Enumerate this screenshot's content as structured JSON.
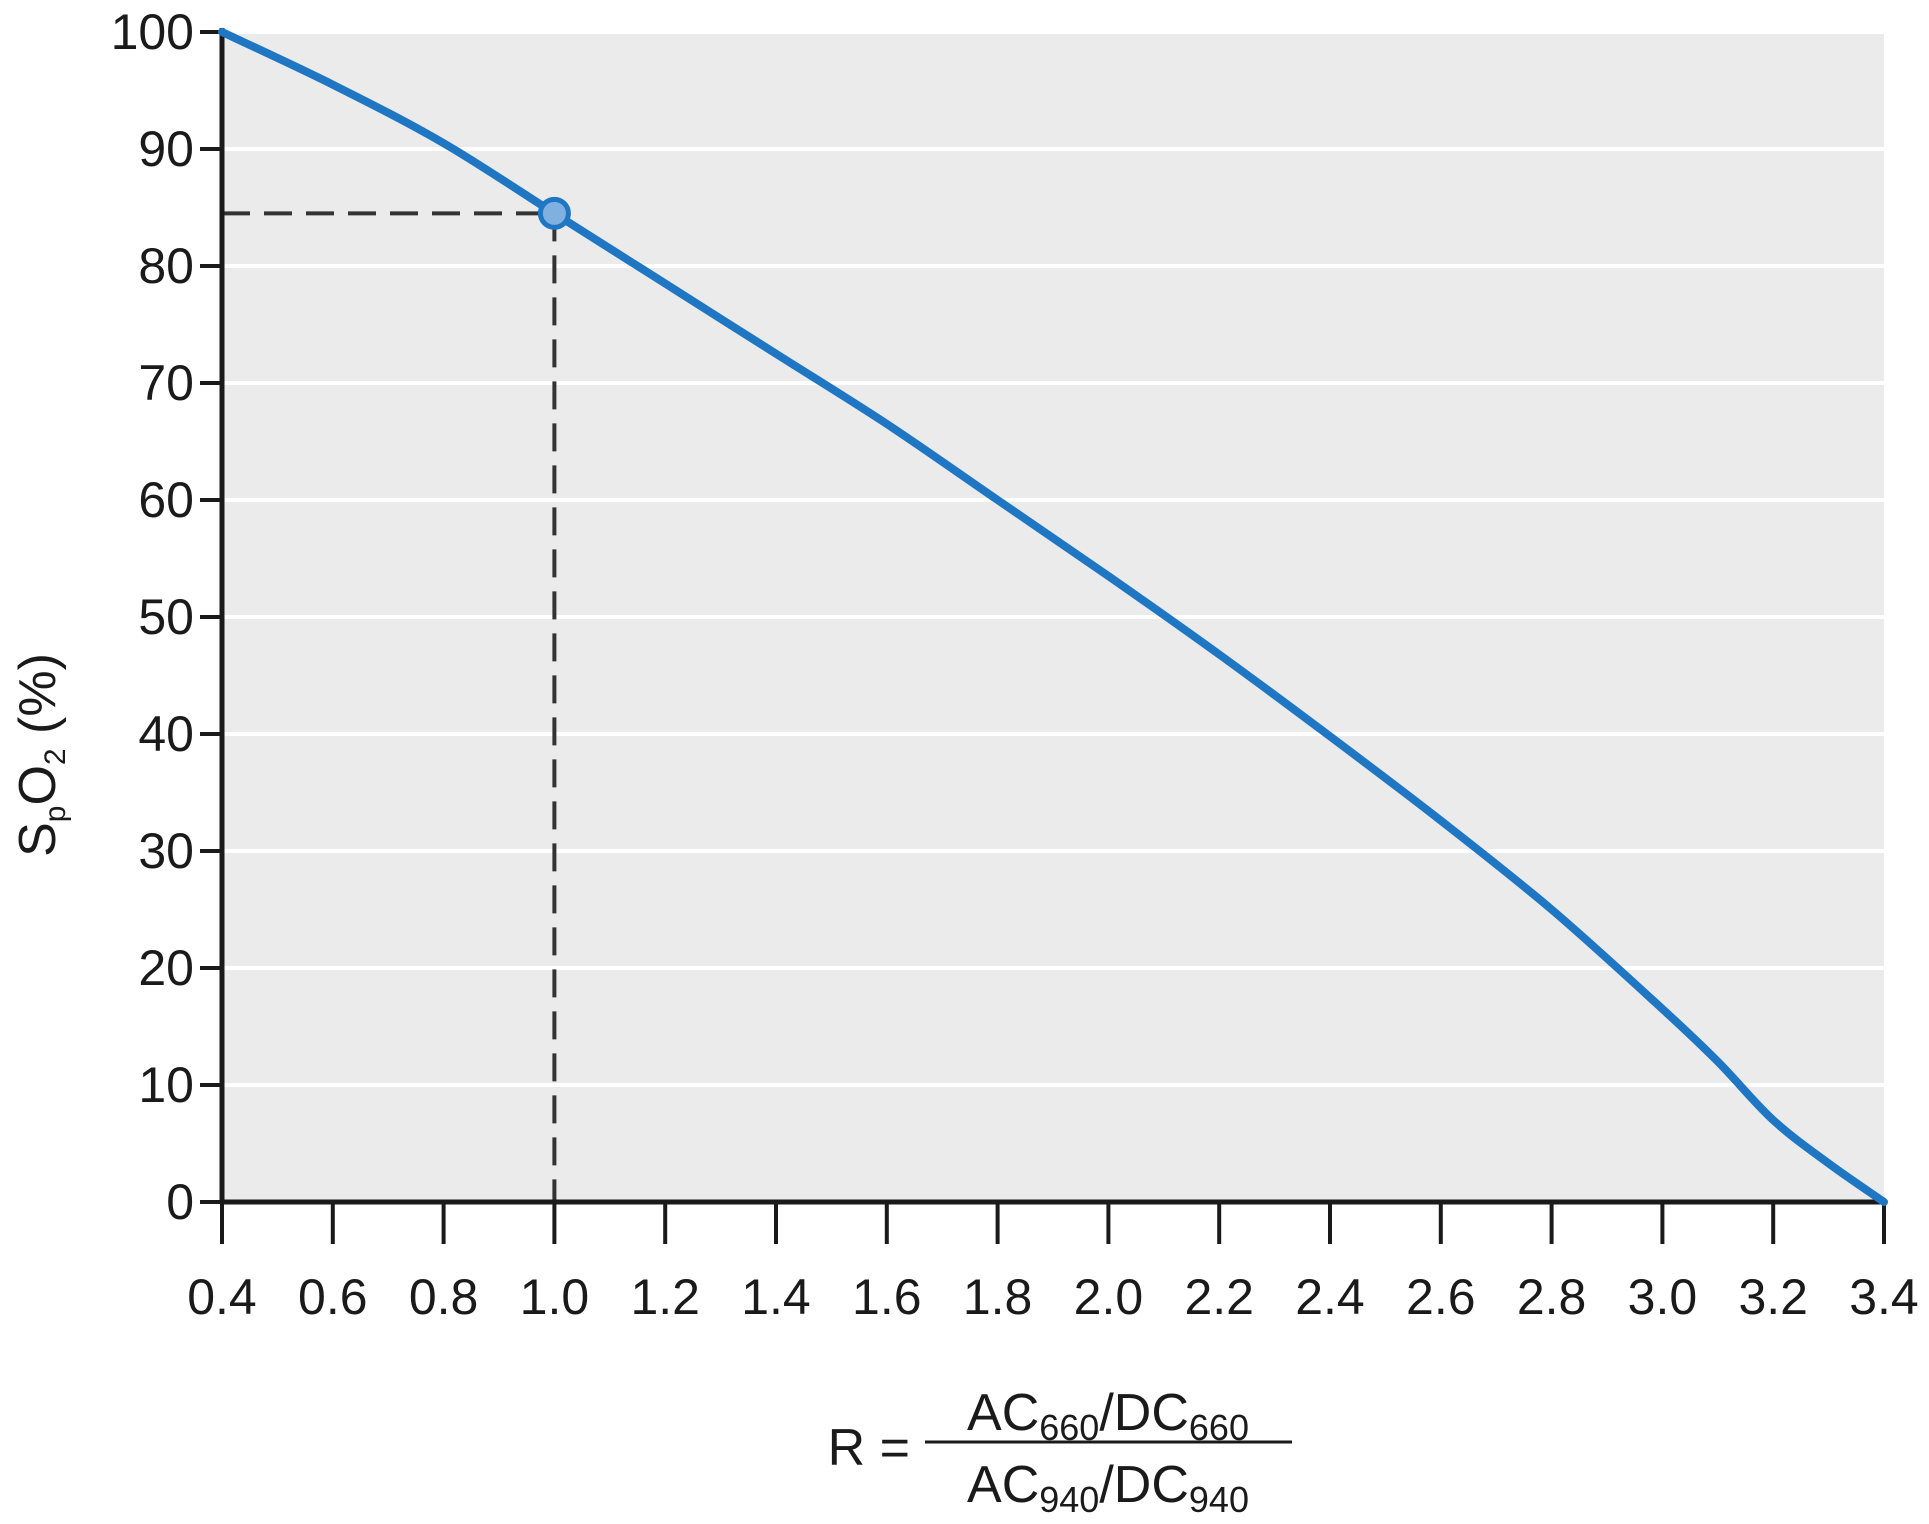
{
  "chart_data": {
    "type": "line",
    "title": "",
    "xlim": [
      0.4,
      3.4
    ],
    "ylim": [
      0,
      100
    ],
    "x_ticks": [
      "0.4",
      "0.6",
      "0.8",
      "1.0",
      "1.2",
      "1.4",
      "1.6",
      "1.8",
      "2.0",
      "2.2",
      "2.4",
      "2.6",
      "2.8",
      "3.0",
      "3.2",
      "3.4"
    ],
    "y_ticks": [
      "0",
      "10",
      "20",
      "30",
      "40",
      "50",
      "60",
      "70",
      "80",
      "90",
      "100"
    ],
    "grid": "horizontal",
    "ylabel": {
      "prefix": "S",
      "sub_p": "p",
      "mid": "O",
      "sub_2": "2",
      "suffix": " (%)"
    },
    "xlabel": {
      "lhs": "R =",
      "numerator": {
        "a": "AC",
        "a_sub": "660",
        "slash": "/",
        "b": "DC",
        "b_sub": "660"
      },
      "denominator": {
        "a": "AC",
        "a_sub": "940",
        "slash": "/",
        "b": "DC",
        "b_sub": "940"
      }
    },
    "series": [
      {
        "color": "#1f77c4",
        "x": [
          0.4,
          0.6,
          0.8,
          1.0,
          1.2,
          1.4,
          1.6,
          1.8,
          2.0,
          2.2,
          2.4,
          2.6,
          2.8,
          3.0,
          3.1,
          3.2,
          3.3,
          3.4
        ],
        "y": [
          100,
          95.5,
          90.5,
          84.5,
          78.5,
          72.5,
          66.5,
          60,
          53.5,
          46.8,
          39.8,
          32.6,
          25,
          16.5,
          12,
          7,
          3.3,
          0
        ]
      }
    ],
    "highlight_point": {
      "x": 1.0,
      "y": 84.5,
      "color": "#7fb0e0"
    },
    "colors": {
      "plot_background": "#ebebeb",
      "gridline": "#ffffff",
      "axis": "#1a1a1a",
      "guide_dash": "#333333"
    }
  }
}
